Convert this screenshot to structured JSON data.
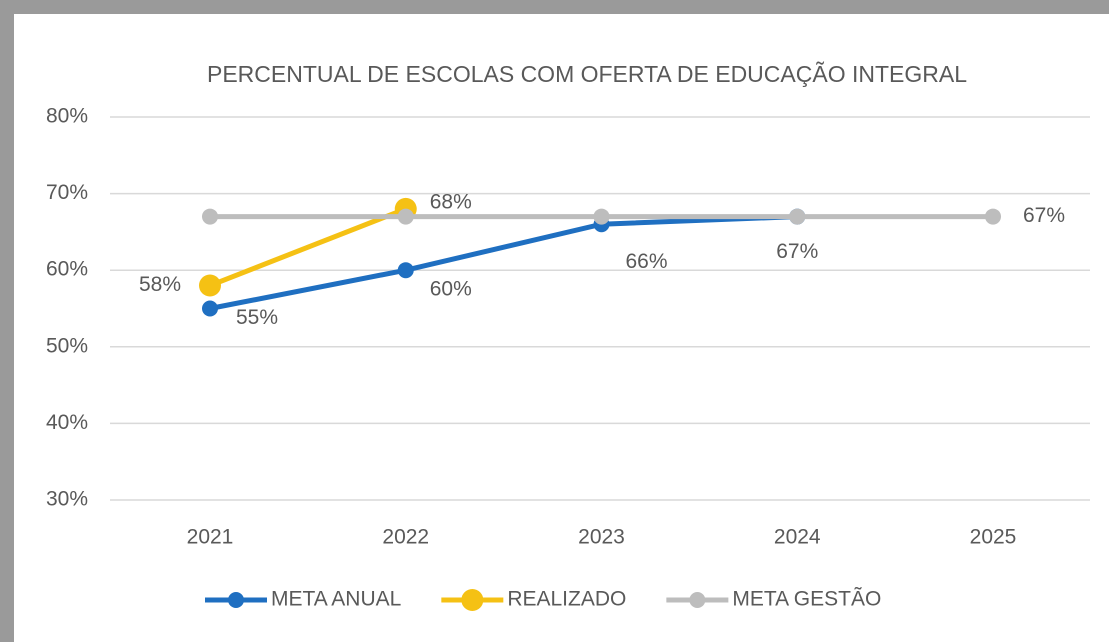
{
  "chart_data": {
    "type": "line",
    "title": "PERCENTUAL DE ESCOLAS COM OFERTA DE EDUCAÇÃO INTEGRAL",
    "categories": [
      "2021",
      "2022",
      "2023",
      "2024",
      "2025"
    ],
    "series": [
      {
        "name": "META ANUAL",
        "color": "#1f6fc1",
        "values": [
          55,
          60,
          66,
          67,
          null
        ],
        "value_labels": [
          "55%",
          "60%",
          "66%",
          "67%",
          null
        ]
      },
      {
        "name": "REALIZADO",
        "color": "#f5c114",
        "values": [
          58,
          68,
          null,
          null,
          null
        ],
        "value_labels": [
          "58%",
          "68%",
          null,
          null,
          null
        ]
      },
      {
        "name": "META GESTÃO",
        "color": "#bdbdbd",
        "values": [
          67,
          67,
          67,
          67,
          67
        ],
        "value_labels": [
          null,
          null,
          null,
          null,
          "67%"
        ]
      }
    ],
    "ylim": [
      30,
      80
    ],
    "yticks": [
      {
        "value": 30,
        "label": "30%"
      },
      {
        "value": 40,
        "label": "40%"
      },
      {
        "value": 50,
        "label": "50%"
      },
      {
        "value": 60,
        "label": "60%"
      },
      {
        "value": 70,
        "label": "70%"
      },
      {
        "value": 80,
        "label": "80%"
      }
    ],
    "grid": true,
    "legend": "bottom"
  }
}
